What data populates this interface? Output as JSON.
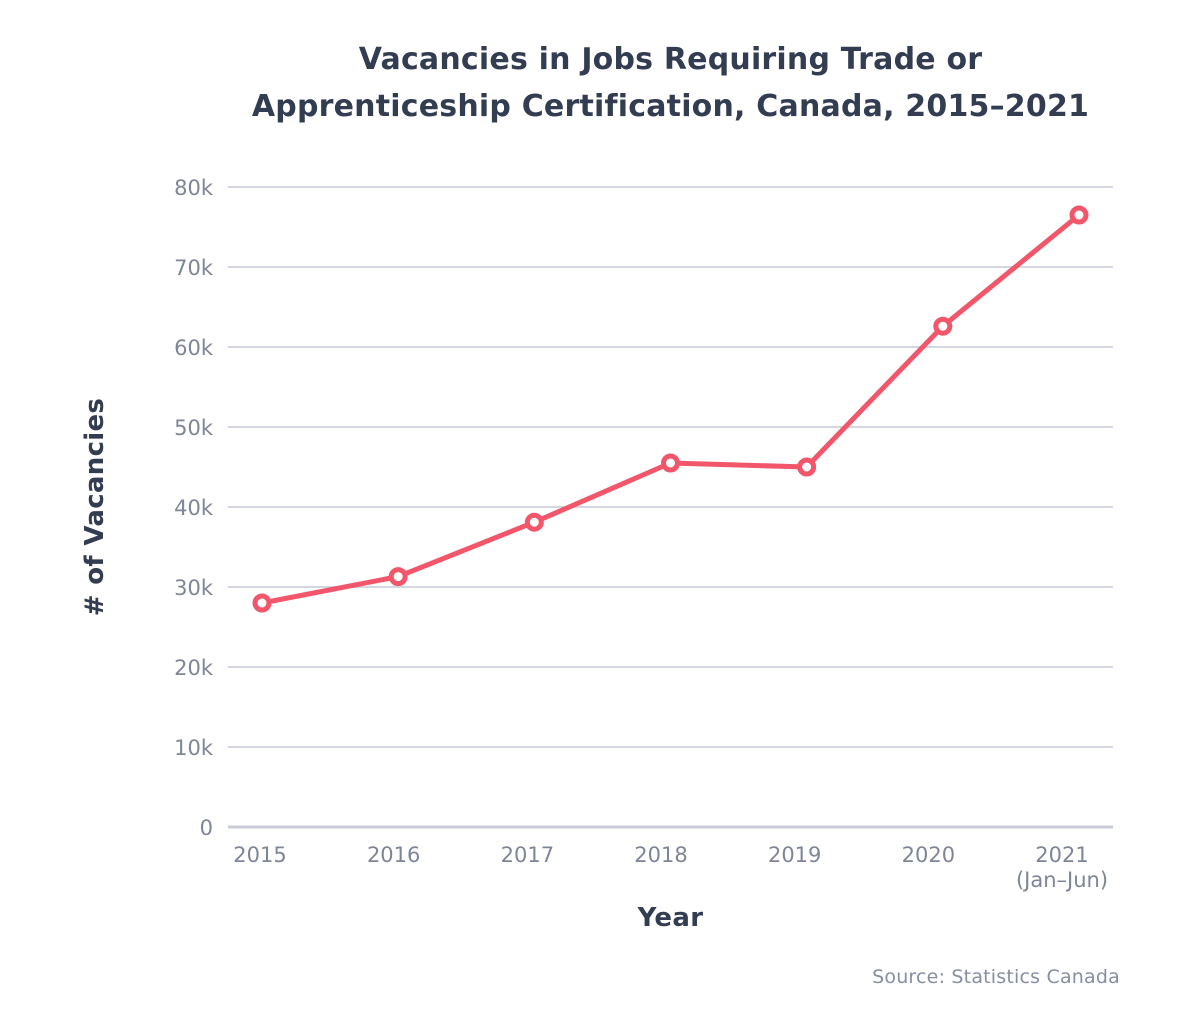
{
  "header": {
    "title_lines": [
      "Vacancies in Jobs Requiring Trade or",
      "Apprenticeship Certification, Canada, 2015–2021"
    ]
  },
  "footer": {
    "source_note": "Source: Statistics Canada"
  },
  "chart_data": {
    "type": "line",
    "title": "Vacancies in Jobs Requiring Trade or Apprenticeship Certification, Canada, 2015–2021",
    "xlabel": "Year",
    "ylabel": "# of Vacancies",
    "categories": [
      "2015",
      "2016",
      "2017",
      "2018",
      "2019",
      "2020",
      "2021 (Jan–Jun)"
    ],
    "x_tick_lines": [
      [
        "2015"
      ],
      [
        "2016"
      ],
      [
        "2017"
      ],
      [
        "2018"
      ],
      [
        "2019"
      ],
      [
        "2020"
      ],
      [
        "2021",
        "(Jan–Jun)"
      ]
    ],
    "values": [
      28000,
      31300,
      38100,
      45500,
      45000,
      62600,
      76500
    ],
    "ylim": [
      0,
      80000
    ],
    "y_ticks": [
      0,
      10000,
      20000,
      30000,
      40000,
      50000,
      60000,
      70000,
      80000
    ],
    "y_tick_labels": [
      "0",
      "10k",
      "20k",
      "30k",
      "40k",
      "50k",
      "60k",
      "70k",
      "80k"
    ],
    "grid": true,
    "legend": false,
    "marker": "open-circle",
    "colors": {
      "line": "#f2566a",
      "marker_fill": "#ffffff",
      "title": "#333d52",
      "tick": "#7e8596",
      "gridline": "#d4d6e0",
      "axis_line": "#c9ccd8",
      "source": "#878ea3"
    }
  }
}
